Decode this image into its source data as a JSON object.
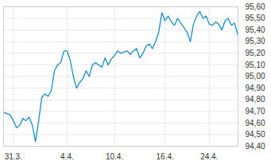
{
  "chart_data": {
    "type": "line",
    "categories": [
      null,
      null,
      null,
      "31.3.",
      null,
      null,
      null,
      null,
      null,
      null,
      null,
      null,
      null,
      null,
      null,
      null,
      null,
      null,
      null,
      null,
      "4.4.",
      null,
      null,
      null,
      null,
      null,
      null,
      null,
      null,
      null,
      null,
      null,
      null,
      null,
      null,
      "10.4.",
      null,
      null,
      null,
      null,
      null,
      null,
      null,
      null,
      null,
      null,
      null,
      null,
      null,
      null,
      null,
      "16.4.",
      null,
      null,
      null,
      null,
      null,
      null,
      null,
      null,
      null,
      null,
      null,
      null,
      null,
      "24.4.",
      null,
      null,
      null,
      null,
      null,
      null,
      null,
      null,
      null
    ],
    "values": [
      94.69,
      94.68,
      94.67,
      94.62,
      94.56,
      94.58,
      94.64,
      94.62,
      94.65,
      94.58,
      94.44,
      94.62,
      94.82,
      94.85,
      94.83,
      94.88,
      95.05,
      95.1,
      95.12,
      95.22,
      95.22,
      95.14,
      95.0,
      94.9,
      94.95,
      94.98,
      95.05,
      95.0,
      95.1,
      95.12,
      95.1,
      95.08,
      95.16,
      95.1,
      95.15,
      95.18,
      95.22,
      95.2,
      95.21,
      95.22,
      95.19,
      95.22,
      95.24,
      95.16,
      95.2,
      95.26,
      95.28,
      95.24,
      95.3,
      95.38,
      95.55,
      95.48,
      95.52,
      95.47,
      95.44,
      95.5,
      95.46,
      95.42,
      95.38,
      95.3,
      95.45,
      95.52,
      95.56,
      95.5,
      95.52,
      95.45,
      95.44,
      95.47,
      95.45,
      95.4,
      95.48,
      95.5,
      95.44,
      95.46,
      95.36
    ],
    "color": "#1a8dc8",
    "ylim": [
      94.4,
      95.6
    ],
    "yticks": [
      {
        "value": 94.4,
        "label": "94,40"
      },
      {
        "value": 94.5,
        "label": "94,50"
      },
      {
        "value": 94.6,
        "label": "94,60"
      },
      {
        "value": 94.7,
        "label": "94,70"
      },
      {
        "value": 94.8,
        "label": "94,80"
      },
      {
        "value": 94.9,
        "label": "94,90"
      },
      {
        "value": 95.0,
        "label": "95,00"
      },
      {
        "value": 95.1,
        "label": "95,10"
      },
      {
        "value": 95.2,
        "label": "95,20"
      },
      {
        "value": 95.3,
        "label": "95,30"
      },
      {
        "value": 95.4,
        "label": "95,40"
      },
      {
        "value": 95.5,
        "label": "95,50"
      },
      {
        "value": 95.6,
        "label": "95,60"
      }
    ],
    "grid": true
  }
}
